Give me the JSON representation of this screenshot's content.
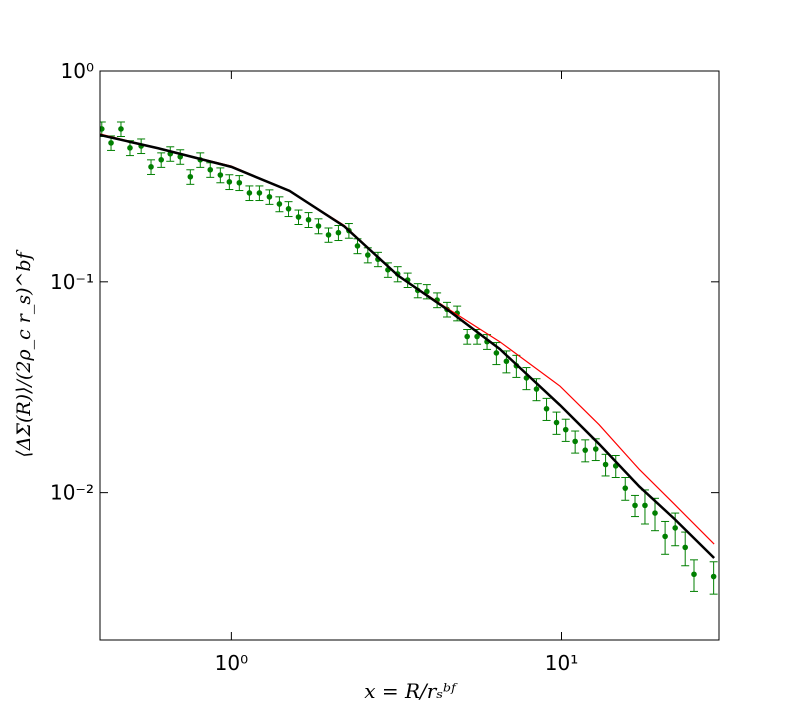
{
  "chart_data": {
    "type": "scatter",
    "xlabel": "x = R/rₛᵇᶠ",
    "ylabel": "⟨ΔΣ(R)⟩/(2ρ_c r_s)^bf",
    "xscale": "log",
    "yscale": "log",
    "xlim": [
      0.4,
      30
    ],
    "ylim": [
      0.002,
      1
    ],
    "xticks": [
      {
        "value": 1,
        "label": "10⁰"
      },
      {
        "value": 10,
        "label": "10¹"
      }
    ],
    "yticks": [
      {
        "value": 0.01,
        "label": "10⁻²"
      },
      {
        "value": 0.1,
        "label": "10⁻¹"
      },
      {
        "value": 1,
        "label": "10⁰"
      }
    ],
    "series": [
      {
        "mode": "errorbar",
        "color": "#007f00",
        "x": [
          0.405,
          0.432,
          0.463,
          0.493,
          0.533,
          0.571,
          0.613,
          0.653,
          0.7,
          0.751,
          0.805,
          0.863,
          0.926,
          0.986,
          1.057,
          1.134,
          1.216,
          1.304,
          1.398,
          1.49,
          1.597,
          1.713,
          1.836,
          1.969,
          2.11,
          2.27,
          2.41,
          2.59,
          2.78,
          2.98,
          3.19,
          3.42,
          3.67,
          3.91,
          4.2,
          4.5,
          4.83,
          5.18,
          5.55,
          5.95,
          6.35,
          6.81,
          7.3,
          7.83,
          8.4,
          9.01,
          9.66,
          10.3,
          11.0,
          11.8,
          12.7,
          13.6,
          14.6,
          15.6,
          16.7,
          17.9,
          19.2,
          20.6,
          22.1,
          23.7,
          25.2,
          28.9
        ],
        "values": [
          0.531,
          0.456,
          0.531,
          0.432,
          0.441,
          0.351,
          0.379,
          0.405,
          0.392,
          0.315,
          0.379,
          0.34,
          0.321,
          0.298,
          0.295,
          0.264,
          0.264,
          0.253,
          0.234,
          0.222,
          0.203,
          0.197,
          0.184,
          0.167,
          0.171,
          0.175,
          0.148,
          0.134,
          0.128,
          0.114,
          0.109,
          0.102,
          0.091,
          0.09,
          0.082,
          0.074,
          0.071,
          0.055,
          0.055,
          0.052,
          0.046,
          0.042,
          0.04,
          0.035,
          0.031,
          0.025,
          0.0215,
          0.0199,
          0.0175,
          0.0159,
          0.0161,
          0.0136,
          0.0134,
          0.0105,
          0.0087,
          0.0087,
          0.008,
          0.0062,
          0.0068,
          0.0055,
          0.0041,
          0.004
        ],
        "yerr": [
          0.042,
          0.036,
          0.042,
          0.035,
          0.035,
          0.028,
          0.03,
          0.032,
          0.031,
          0.025,
          0.03,
          0.027,
          0.026,
          0.024,
          0.024,
          0.021,
          0.021,
          0.02,
          0.019,
          0.018,
          0.016,
          0.016,
          0.015,
          0.013,
          0.014,
          0.014,
          0.012,
          0.011,
          0.01,
          0.009,
          0.009,
          0.008,
          0.007,
          0.007,
          0.0066,
          0.0059,
          0.0057,
          0.0044,
          0.0044,
          0.0042,
          0.0055,
          0.005,
          0.0048,
          0.0042,
          0.0037,
          0.003,
          0.0026,
          0.0024,
          0.0021,
          0.0019,
          0.0019,
          0.0016,
          0.0016,
          0.0013,
          0.001,
          0.0016,
          0.0014,
          0.0011,
          0.0012,
          0.001,
          0.0007,
          0.0007
        ]
      },
      {
        "mode": "line",
        "color": "#ff0000",
        "width": 1.2,
        "x": [
          0.4,
          0.6,
          1,
          1.5,
          2.2,
          3.2,
          4.5,
          6.5,
          9.9,
          13,
          17.2,
          22,
          29
        ],
        "values": [
          0.503,
          0.43,
          0.354,
          0.27,
          0.185,
          0.107,
          0.075,
          0.052,
          0.032,
          0.021,
          0.0129,
          0.0088,
          0.0057
        ]
      },
      {
        "mode": "line",
        "color": "#000000",
        "width": 2.5,
        "x": [
          0.4,
          0.6,
          1,
          1.5,
          2.2,
          3.2,
          4.5,
          6.5,
          9.9,
          13,
          17.2,
          22,
          29
        ],
        "values": [
          0.497,
          0.43,
          0.351,
          0.27,
          0.183,
          0.107,
          0.074,
          0.048,
          0.026,
          0.017,
          0.0107,
          0.0075,
          0.0049
        ]
      }
    ]
  }
}
